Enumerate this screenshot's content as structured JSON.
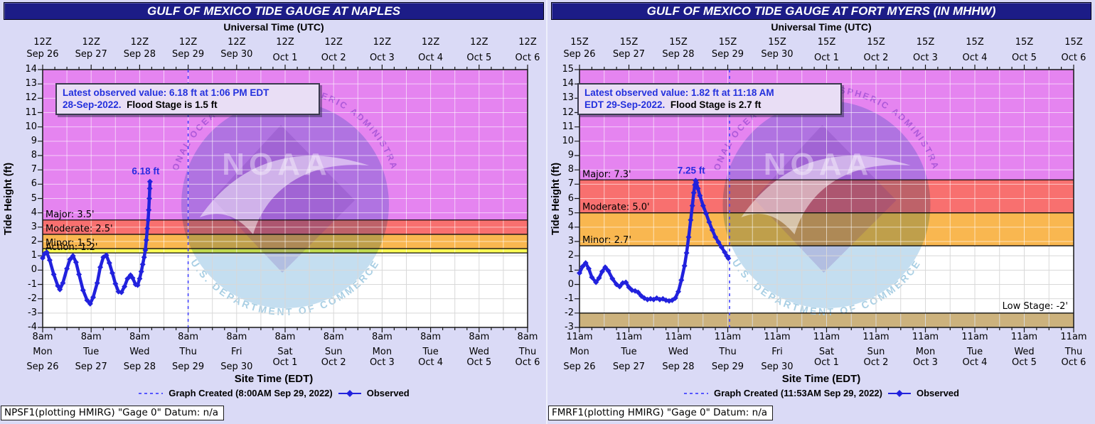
{
  "colors": {
    "page_bg": "#dadaf6",
    "title_bg": "#1c1c87",
    "title_text": "#ffffff",
    "magenta_band": "#e584f0",
    "red_band": "#f8706f",
    "orange_band": "#f9b750",
    "yellow_band": "#fafa55",
    "tan_band": "#ccb27d",
    "observed_line": "#2121dd",
    "created_line": "#4444ff",
    "annotation_blue": "#2a2ae0",
    "info_text_blue": "#2330dd",
    "grid_gray": "#d8d8d8",
    "watermark_top_text": "#a04fd4",
    "watermark_bottom_text": "#a9cfe4"
  },
  "watermark": {
    "noaa_text": "NOAA",
    "top_arc_text": "NATIONAL OCEANIC AND ATMOSPHERIC ADMINISTRATION",
    "bottom_arc_text": "U.S. DEPARTMENT OF COMMERCE"
  },
  "panels": [
    {
      "title": "GULF OF MEXICO TIDE GAUGE AT NAPLES",
      "top_axis_title": "Universal Time (UTC)",
      "bottom_axis_title": "Site Time (EDT)",
      "y_axis_title": "Tide Height (ft)",
      "info_box": {
        "line1": "Latest observed value: 6.18 ft at 1:06 PM EDT",
        "line2_blue": "28-Sep-2022.",
        "line2_black": "Flood Stage is 1.5 ft"
      },
      "legend": {
        "created_label": "Graph Created (8:00AM Sep 29, 2022)",
        "observed_label": "Observed"
      },
      "station_note": "NPSF1(plotting HMIRG) \"Gage 0\" Datum: n/a"
    },
    {
      "title": "GULF OF MEXICO TIDE GAUGE AT FORT MYERS (IN MHHW)",
      "top_axis_title": "Universal Time (UTC)",
      "bottom_axis_title": "Site Time (EDT)",
      "y_axis_title": "Tide Height (ft)",
      "info_box": {
        "line1": "Latest observed value: 1.82 ft at 11:18 AM",
        "line2_blue": "EDT 29-Sep-2022.",
        "line2_black": "Flood Stage is 2.7 ft"
      },
      "legend": {
        "created_label": "Graph Created (11:53AM Sep 29, 2022)",
        "observed_label": "Observed"
      },
      "station_note": "FMRF1(plotting HMIRG) \"Gage 0\" Datum: n/a"
    }
  ],
  "chart_data": [
    {
      "type": "line",
      "title": "GULF OF MEXICO TIDE GAUGE AT NAPLES",
      "xlabel": "Site Time (EDT)",
      "xlabel_top": "Universal Time (UTC)",
      "ylabel": "Tide Height (ft)",
      "ylim": [
        -4,
        14
      ],
      "x_hours_total": 240,
      "grid": true,
      "top_tick_time": "12Z",
      "bottom_tick_time": "8am",
      "x_tick_days": [
        "Mon",
        "Tue",
        "Wed",
        "Thu",
        "Fri",
        "Sat",
        "Sun",
        "Mon",
        "Tue",
        "Wed",
        "Thu"
      ],
      "x_tick_dates": [
        "Sep 26",
        "Sep 27",
        "Sep 28",
        "Sep 29",
        "Sep 30",
        "Oct 1",
        "Oct 2",
        "Oct 3",
        "Oct 4",
        "Oct 5",
        "Oct 6"
      ],
      "white_below": 1.2,
      "flood_bands": [
        {
          "name": "major",
          "label": "Major: 3.5'",
          "threshold": 3.5,
          "extends_to": 14,
          "color": "#e584f0"
        },
        {
          "name": "moderate",
          "label": "Moderate: 2.5'",
          "threshold": 2.5,
          "extends_to": 3.5,
          "color": "#f8706f"
        },
        {
          "name": "minor",
          "label": "Minor: 1.5'",
          "threshold": 1.5,
          "extends_to": 2.5,
          "color": "#f9b750"
        },
        {
          "name": "action",
          "label": "Action: 1.2'",
          "threshold": 1.2,
          "extends_to": 1.5,
          "color": "#fafa55"
        }
      ],
      "low_band": null,
      "flood_stage_ft": 1.5,
      "latest_observed": {
        "value_ft": 6.18,
        "time": "1:06 PM EDT 28-Sep-2022"
      },
      "graph_created_hour": 72,
      "peak_label": {
        "text": "6.18 ft",
        "hour": 53.1,
        "value": 6.18
      },
      "observed": [
        [
          0,
          0.85
        ],
        [
          1,
          1.15
        ],
        [
          2,
          1.25
        ],
        [
          3.5,
          0.7
        ],
        [
          5.5,
          -0.3
        ],
        [
          7.5,
          -1.1
        ],
        [
          8.5,
          -1.35
        ],
        [
          10,
          -0.9
        ],
        [
          12,
          0.1
        ],
        [
          13.5,
          0.75
        ],
        [
          15,
          1.0
        ],
        [
          16.5,
          0.55
        ],
        [
          18,
          -0.3
        ],
        [
          20,
          -1.4
        ],
        [
          22,
          -2.1
        ],
        [
          23.5,
          -2.35
        ],
        [
          25,
          -1.9
        ],
        [
          27,
          -0.9
        ],
        [
          28.5,
          0.2
        ],
        [
          30,
          0.9
        ],
        [
          31.5,
          1.05
        ],
        [
          33,
          0.5
        ],
        [
          34.5,
          -0.2
        ],
        [
          36,
          -0.95
        ],
        [
          37.5,
          -1.5
        ],
        [
          39,
          -1.55
        ],
        [
          40.5,
          -1.15
        ],
        [
          42,
          -0.6
        ],
        [
          43.5,
          -0.35
        ],
        [
          44.5,
          -0.55
        ],
        [
          46,
          -1.0
        ],
        [
          47,
          -1.05
        ],
        [
          48,
          -0.6
        ],
        [
          48.8,
          -0.1
        ],
        [
          49.5,
          0.4
        ],
        [
          50.2,
          0.9
        ],
        [
          50.8,
          1.4
        ],
        [
          51.3,
          2.1
        ],
        [
          51.8,
          2.9
        ],
        [
          52.2,
          3.5
        ],
        [
          52.5,
          4.2
        ],
        [
          52.8,
          5.0
        ],
        [
          53,
          5.7
        ],
        [
          53.1,
          6.18
        ]
      ]
    },
    {
      "type": "line",
      "title": "GULF OF MEXICO TIDE GAUGE AT FORT MYERS (IN MHHW)",
      "xlabel": "Site Time (EDT)",
      "xlabel_top": "Universal Time (UTC)",
      "ylabel": "Tide Height (ft)",
      "ylim": [
        -3,
        15
      ],
      "x_hours_total": 240,
      "grid": true,
      "top_tick_time": "15Z",
      "bottom_tick_time": "11am",
      "x_tick_days": [
        "Mon",
        "Tue",
        "Wed",
        "Thu",
        "Fri",
        "Sat",
        "Sun",
        "Mon",
        "Tue",
        "Wed",
        "Thu"
      ],
      "x_tick_dates": [
        "Sep 26",
        "Sep 27",
        "Sep 28",
        "Sep 29",
        "Sep 30",
        "Oct 1",
        "Oct 2",
        "Oct 3",
        "Oct 4",
        "Oct 5",
        "Oct 6"
      ],
      "white_below": 2.7,
      "flood_bands": [
        {
          "name": "major",
          "label": "Major: 7.3'",
          "threshold": 7.3,
          "extends_to": 15,
          "color": "#e584f0"
        },
        {
          "name": "moderate",
          "label": "Moderate: 5.0'",
          "threshold": 5.0,
          "extends_to": 7.3,
          "color": "#f8706f"
        },
        {
          "name": "minor",
          "label": "Minor: 2.7'",
          "threshold": 2.7,
          "extends_to": 5.0,
          "color": "#f9b750"
        }
      ],
      "low_band": {
        "label": "Low Stage: -2'",
        "from": -3,
        "to": -2,
        "color": "#ccb27d"
      },
      "flood_stage_ft": 2.7,
      "latest_observed": {
        "value_ft": 1.82,
        "time": "11:18 AM EDT 29-Sep-2022"
      },
      "graph_created_hour": 72.88,
      "peak_label": {
        "text": "7.25 ft",
        "hour": 56.4,
        "value": 7.25
      },
      "observed": [
        [
          0,
          0.8
        ],
        [
          1.5,
          1.25
        ],
        [
          3,
          1.5
        ],
        [
          4.5,
          1.1
        ],
        [
          6,
          0.5
        ],
        [
          8,
          0.15
        ],
        [
          9.5,
          0.45
        ],
        [
          11,
          0.9
        ],
        [
          12.5,
          1.2
        ],
        [
          14,
          0.95
        ],
        [
          16,
          0.4
        ],
        [
          18,
          0.0
        ],
        [
          19.5,
          -0.15
        ],
        [
          21,
          0.1
        ],
        [
          22.5,
          0.15
        ],
        [
          24,
          -0.2
        ],
        [
          25.5,
          -0.4
        ],
        [
          27,
          -0.45
        ],
        [
          28.5,
          -0.55
        ],
        [
          30,
          -0.8
        ],
        [
          31.5,
          -0.95
        ],
        [
          33,
          -1.05
        ],
        [
          34.5,
          -1.0
        ],
        [
          36,
          -1.05
        ],
        [
          37.5,
          -0.95
        ],
        [
          39,
          -1.05
        ],
        [
          40.5,
          -1.0
        ],
        [
          42,
          -1.1
        ],
        [
          43.5,
          -1.15
        ],
        [
          45,
          -1.1
        ],
        [
          46.5,
          -0.95
        ],
        [
          48,
          -0.5
        ],
        [
          49.5,
          0.3
        ],
        [
          51,
          1.3
        ],
        [
          52,
          2.2
        ],
        [
          53,
          3.3
        ],
        [
          54,
          4.5
        ],
        [
          54.8,
          5.5
        ],
        [
          55.5,
          6.4
        ],
        [
          56,
          6.95
        ],
        [
          56.4,
          7.25
        ],
        [
          56.8,
          7.1
        ],
        [
          57.5,
          6.7
        ],
        [
          58.5,
          6.2
        ],
        [
          60,
          5.5
        ],
        [
          61.5,
          4.95
        ],
        [
          63,
          4.35
        ],
        [
          64.5,
          3.8
        ],
        [
          66,
          3.3
        ],
        [
          67.5,
          2.95
        ],
        [
          69,
          2.6
        ],
        [
          70.5,
          2.25
        ],
        [
          71.5,
          2.0
        ],
        [
          72.3,
          1.82
        ]
      ]
    }
  ]
}
